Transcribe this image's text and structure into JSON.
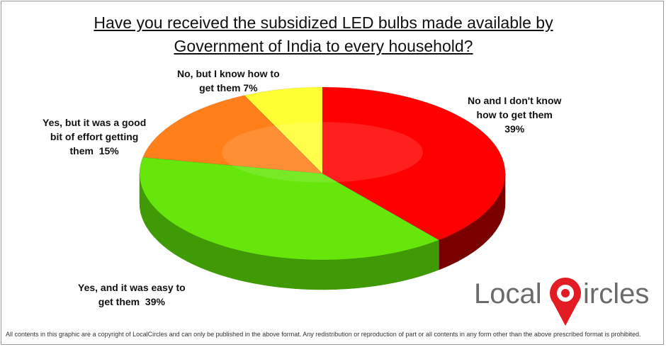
{
  "chart_data": {
    "type": "pie",
    "title_line1": "Have you received the subsidized LED bulbs made available by",
    "title_line2": "Government of India to every household?",
    "slices": [
      {
        "label_lines": [
          "No and I don't know",
          "how to get them"
        ],
        "percent_text": "39%",
        "value": 39,
        "color": "#ff0000",
        "side_color": "#7a0000"
      },
      {
        "label_lines": [
          "Yes, and it was easy to",
          "get them"
        ],
        "percent_text": "39%",
        "value": 39,
        "color": "#66e60a",
        "side_color": "#3f9a05"
      },
      {
        "label_lines": [
          "Yes, but it was a good",
          "bit of effort getting",
          "them"
        ],
        "percent_text": "15%",
        "value": 15,
        "color": "#ff7f1a",
        "side_color": "#a04a08"
      },
      {
        "label_lines": [
          "No, but I know how to",
          "get them"
        ],
        "percent_text": "7%",
        "value": 7,
        "color": "#ffff33",
        "side_color": "#9a9a10"
      }
    ]
  },
  "branding": {
    "logo_text_left": "Local",
    "logo_text_right": "ircles"
  },
  "footer": "All contents in this graphic are a copyright of LocalCircles and can only be published in the above format. Any redistribution or reproduction of part or all contents in any form other than the above prescribed format is prohibited."
}
